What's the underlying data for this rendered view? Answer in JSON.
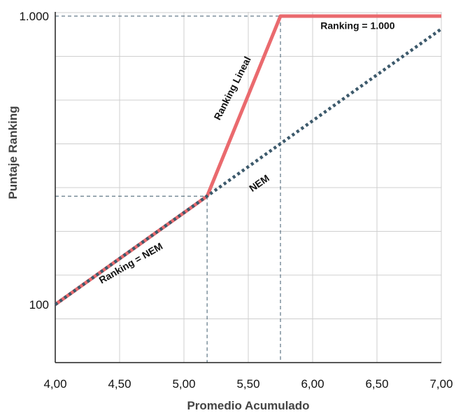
{
  "chart_data": {
    "type": "line",
    "xlabel": "Promedio Acumulado",
    "ylabel": "Puntaje Ranking",
    "xlim": [
      4.0,
      7.0
    ],
    "ylim": [
      0,
      1100
    ],
    "x_ticks": [
      4.0,
      4.5,
      5.0,
      5.5,
      6.0,
      6.5,
      7.0
    ],
    "x_tick_labels": [
      "4,00",
      "4,50",
      "5,00",
      "5,50",
      "6,00",
      "6,50",
      "7,00"
    ],
    "y_ticks": [
      100,
      1000
    ],
    "y_tick_labels": [
      "100",
      "1.000"
    ],
    "grid": true,
    "series": [
      {
        "name": "NEM",
        "style": "dotted",
        "color": "#3d5a6c",
        "x": [
          4.0,
          7.0
        ],
        "y": [
          100,
          960
        ]
      },
      {
        "name": "Ranking",
        "style": "solid",
        "color": "#ea6a6e",
        "x": [
          4.0,
          5.18,
          5.75,
          7.0
        ],
        "y": [
          100,
          438,
          1000,
          1000
        ]
      }
    ],
    "reference_lines": [
      {
        "x": 5.18,
        "y": 438
      },
      {
        "x": 5.75,
        "y": 1000
      }
    ],
    "annotations": [
      {
        "text": "Ranking = 1.000",
        "x": 6.35,
        "y": 960,
        "angle": 0
      },
      {
        "text": "Ranking Lineal",
        "x": 5.4,
        "y": 770,
        "angle": -63
      },
      {
        "text": "NEM",
        "x": 5.6,
        "y": 470,
        "angle": -35
      },
      {
        "text": "Ranking = NEM",
        "x": 4.6,
        "y": 220,
        "angle": -30
      }
    ]
  }
}
